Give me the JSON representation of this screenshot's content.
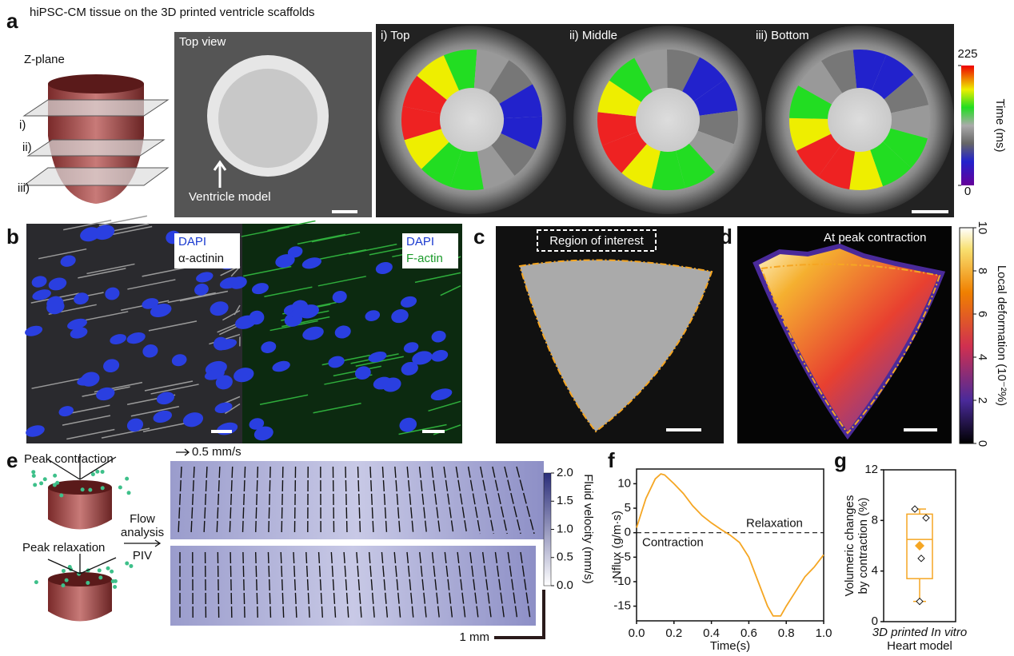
{
  "panel_labels": [
    "a",
    "b",
    "c",
    "d",
    "e",
    "f",
    "g"
  ],
  "panel_a": {
    "title": "hiPSC-CM tissue on the 3D printed ventricle scaffolds",
    "z_plane": "Z-plane",
    "planes": [
      "i)",
      "ii)",
      "iii)"
    ],
    "top_view": "Top view",
    "ventricle_model": "Ventricle model",
    "sections": [
      "i) Top",
      "ii) Middle",
      "iii) Bottom"
    ],
    "colorbar": {
      "label": "Time (ms)",
      "lim": [
        0,
        225
      ],
      "ticks": [
        225,
        0
      ]
    }
  },
  "panel_b": {
    "left": [
      "DAPI",
      "α-actinin"
    ],
    "right": [
      "DAPI",
      "F-actin"
    ]
  },
  "panel_c": {
    "label": "Region of interest"
  },
  "panel_d": {
    "label": "At peak contraction",
    "colorbar": {
      "label": "Local deformation (10⁻²%)",
      "lim": [
        0,
        10
      ],
      "ticks": [
        0,
        2,
        4,
        6,
        8,
        10
      ]
    }
  },
  "panel_e": {
    "peak_contraction": "Peak contraction",
    "peak_relaxation": "Peak relaxation",
    "flow_analysis": [
      "Flow",
      "analysis"
    ],
    "piv": "PIV",
    "velocity_scale": "0.5 mm/s",
    "length_scale": "1 mm",
    "colorbar": {
      "label": "Fluid velocity (mm/s)",
      "lim": [
        0,
        2
      ],
      "ticks": [
        {
          "value": 0,
          "label": "0.0"
        },
        {
          "value": 0.5,
          "label": "0.5"
        },
        {
          "value": 1,
          "label": "1.0"
        },
        {
          "value": 1.5,
          "label": "1.5"
        },
        {
          "value": 2,
          "label": "2.0"
        }
      ]
    }
  },
  "chart_data": [
    {
      "type": "line",
      "x_label": "Time(s)",
      "y_label": "Nflux (g/m·s)",
      "x": [
        0,
        0.05,
        0.1,
        0.13,
        0.15,
        0.2,
        0.25,
        0.3,
        0.35,
        0.4,
        0.45,
        0.5,
        0.55,
        0.6,
        0.65,
        0.7,
        0.73,
        0.77,
        0.8,
        0.85,
        0.9,
        0.95,
        1.0
      ],
      "series": [
        {
          "color": "#f5a623",
          "values": [
            1,
            7,
            11,
            12,
            11.8,
            10,
            8,
            5.5,
            3.5,
            2,
            0.7,
            -0.5,
            -2,
            -5,
            -10,
            -15,
            -17,
            -17,
            -15,
            -12,
            -9,
            -7,
            -4.5
          ]
        }
      ],
      "annotations": [
        "Relaxation",
        "Contraction"
      ],
      "xlim": [
        0,
        1
      ],
      "xticks": [
        {
          "value": 0,
          "label": "0.0"
        },
        {
          "value": 0.2,
          "label": "0.2"
        },
        {
          "value": 0.4,
          "label": "0.4"
        },
        {
          "value": 0.6,
          "label": "0.6"
        },
        {
          "value": 0.8,
          "label": "0.8"
        },
        {
          "value": 1,
          "label": "1.0"
        }
      ],
      "ylim": [
        -18,
        13
      ],
      "yticks": [
        -15,
        -10,
        -5,
        0,
        5,
        10
      ]
    },
    {
      "type": "box",
      "y_label": [
        "Volumeric changes",
        "by contraction (%)"
      ],
      "categories": [
        "3D printed In vitro"
      ],
      "x_label": "Heart model",
      "color": "#f5a623",
      "box": {
        "min": 1.6,
        "q1": 3.4,
        "median": 6.5,
        "q3": 8.5,
        "max": 8.9,
        "mean": 6.0,
        "points": [
          8.9,
          8.2,
          5.0,
          1.6
        ]
      },
      "ylim": [
        0,
        12
      ],
      "yticks": [
        0,
        4,
        8,
        12
      ]
    }
  ]
}
